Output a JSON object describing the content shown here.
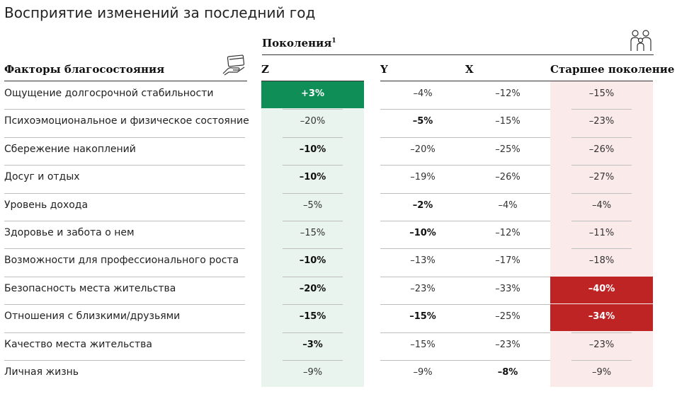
{
  "title": "Восприятие изменений за последний год",
  "generations_label": "Поколения",
  "generations_footnote": "1",
  "factors_header": "Факторы благосостояния",
  "icons": {
    "factors": "hand-card-icon",
    "generations": "family-icon"
  },
  "colors": {
    "positive_highlight": "#0f8f57",
    "negative_highlight": "#bf2424",
    "z_column_bg": "#e9f4ee",
    "older_column_bg": "#fbeaea"
  },
  "chart_data": {
    "type": "table",
    "title": "Восприятие изменений за последний год",
    "columns": [
      "Z",
      "Y",
      "X",
      "Старшее поколение"
    ],
    "rows": [
      {
        "label": "Ощущение долгосрочной стабильности",
        "values": [
          "+3%",
          "–4%",
          "–12%",
          "–15%"
        ],
        "bold": [
          true,
          false,
          false,
          false
        ],
        "highlight": [
          "positive",
          null,
          null,
          null
        ]
      },
      {
        "label": "Психоэмоциональное и физическое состояние",
        "values": [
          "–20%",
          "–5%",
          "–15%",
          "–23%"
        ],
        "bold": [
          false,
          true,
          false,
          false
        ],
        "highlight": [
          null,
          null,
          null,
          null
        ]
      },
      {
        "label": "Сбережение накоплений",
        "values": [
          "–10%",
          "–20%",
          "–25%",
          "–26%"
        ],
        "bold": [
          true,
          false,
          false,
          false
        ],
        "highlight": [
          null,
          null,
          null,
          null
        ]
      },
      {
        "label": "Досуг и отдых",
        "values": [
          "–10%",
          "–19%",
          "–26%",
          "–27%"
        ],
        "bold": [
          true,
          false,
          false,
          false
        ],
        "highlight": [
          null,
          null,
          null,
          null
        ]
      },
      {
        "label": "Уровень дохода",
        "values": [
          "–5%",
          "–2%",
          "–4%",
          "–4%"
        ],
        "bold": [
          false,
          true,
          false,
          false
        ],
        "highlight": [
          null,
          null,
          null,
          null
        ]
      },
      {
        "label": "Здоровье и забота о нем",
        "values": [
          "–15%",
          "–10%",
          "–12%",
          "–11%"
        ],
        "bold": [
          false,
          true,
          false,
          false
        ],
        "highlight": [
          null,
          null,
          null,
          null
        ]
      },
      {
        "label": "Возможности для профессионального роста",
        "values": [
          "–10%",
          "–13%",
          "–17%",
          "–18%"
        ],
        "bold": [
          true,
          false,
          false,
          false
        ],
        "highlight": [
          null,
          null,
          null,
          null
        ]
      },
      {
        "label": "Безопасность места жительства",
        "values": [
          "–20%",
          "–23%",
          "–33%",
          "–40%"
        ],
        "bold": [
          true,
          false,
          false,
          true
        ],
        "highlight": [
          null,
          null,
          null,
          "negative"
        ]
      },
      {
        "label": "Отношения с близкими/друзьями",
        "values": [
          "–15%",
          "–15%",
          "–25%",
          "–34%"
        ],
        "bold": [
          true,
          true,
          false,
          true
        ],
        "highlight": [
          null,
          null,
          null,
          "negative"
        ]
      },
      {
        "label": "Качество места жительства",
        "values": [
          "–3%",
          "–15%",
          "–23%",
          "–23%"
        ],
        "bold": [
          true,
          false,
          false,
          false
        ],
        "highlight": [
          null,
          null,
          null,
          null
        ]
      },
      {
        "label": "Личная жизнь",
        "values": [
          "–9%",
          "–9%",
          "–8%",
          "–9%"
        ],
        "bold": [
          false,
          false,
          true,
          false
        ],
        "highlight": [
          null,
          null,
          null,
          null
        ]
      }
    ]
  }
}
